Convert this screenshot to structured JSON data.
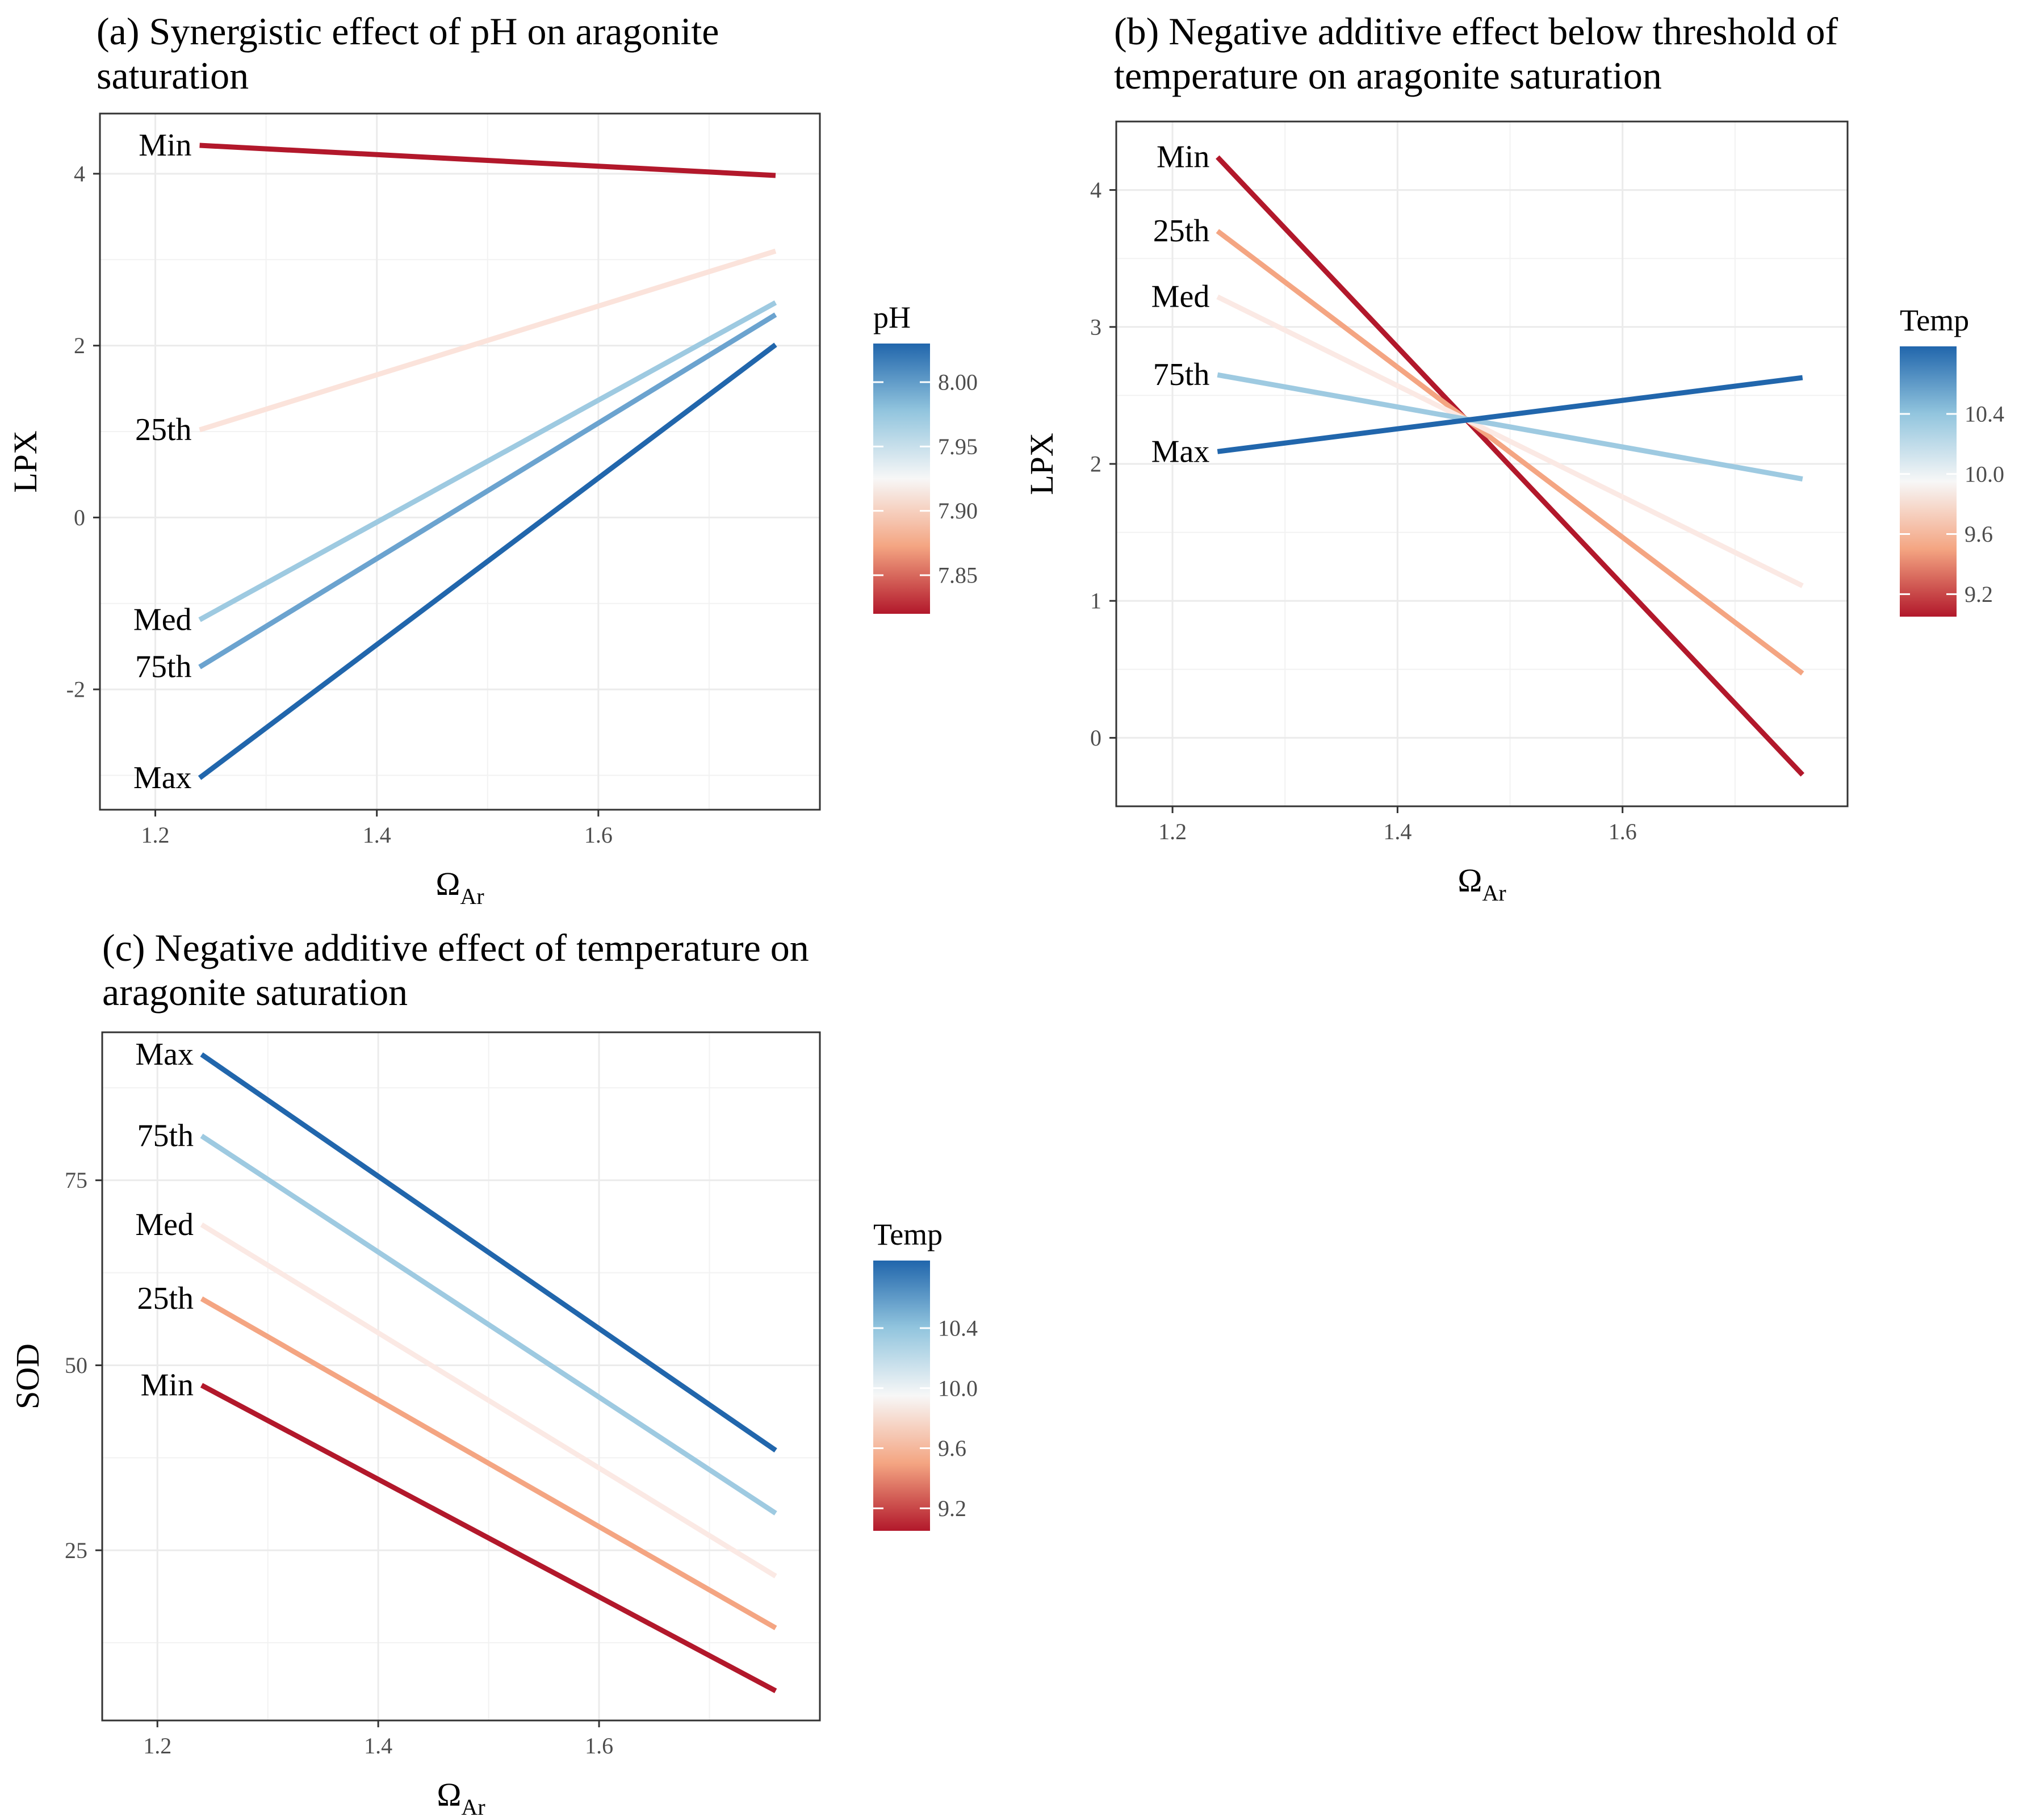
{
  "chart_data": [
    {
      "id": "a",
      "type": "line",
      "title_lines": [
        "(a) Synergistic effect of pH on aragonite",
        "saturation"
      ],
      "xlabel": "Ω",
      "xlabel_sub": "Ar",
      "ylabel": "LPX",
      "xlim": [
        1.15,
        1.8
      ],
      "ylim": [
        -3.4,
        4.7
      ],
      "xticks": [
        1.2,
        1.4,
        1.6
      ],
      "xtick_labels": [
        "1.2",
        "1.4",
        "1.6"
      ],
      "yticks": [
        -2,
        0,
        2,
        4
      ],
      "ytick_labels": [
        "-2",
        "0",
        "2",
        "4"
      ],
      "grid": true,
      "x": [
        1.24,
        1.76
      ],
      "series": [
        {
          "name": "Min",
          "values": [
            4.33,
            3.98
          ],
          "color": "#B2182B"
        },
        {
          "name": "25th",
          "values": [
            1.02,
            3.1
          ],
          "color": "#FBE3DB"
        },
        {
          "name": "Med",
          "values": [
            -1.19,
            2.5
          ],
          "color": "#9ECAE1"
        },
        {
          "name": "75th",
          "values": [
            -1.74,
            2.36
          ],
          "color": "#6BA3CF"
        },
        {
          "name": "Max",
          "values": [
            -3.03,
            2.01
          ],
          "color": "#2166AC"
        }
      ],
      "legend": {
        "title": "pH",
        "range": [
          7.82,
          8.03
        ],
        "ticks": [
          7.85,
          7.9,
          7.95,
          8.0
        ],
        "tick_labels": [
          "7.85",
          "7.90",
          "7.95",
          "8.00"
        ],
        "colors": [
          "#B2182B",
          "#F4A582",
          "#F7F7F7",
          "#92C5DE",
          "#2166AC"
        ],
        "placement": "right"
      }
    },
    {
      "id": "b",
      "type": "line",
      "title_lines": [
        "(b) Negative additive effect below threshold of",
        " temperature on aragonite saturation"
      ],
      "xlabel": "Ω",
      "xlabel_sub": "Ar",
      "ylabel": "LPX",
      "xlim": [
        1.15,
        1.8
      ],
      "ylim": [
        -0.5,
        4.5
      ],
      "xticks": [
        1.2,
        1.4,
        1.6
      ],
      "xtick_labels": [
        "1.2",
        "1.4",
        "1.6"
      ],
      "yticks": [
        0,
        1,
        2,
        3,
        4
      ],
      "ytick_labels": [
        "0",
        "1",
        "2",
        "3",
        "4"
      ],
      "grid": true,
      "x": [
        1.24,
        1.76
      ],
      "series": [
        {
          "name": "Min",
          "values": [
            4.24,
            -0.27
          ],
          "color": "#B2182B"
        },
        {
          "name": "25th",
          "values": [
            3.7,
            0.47
          ],
          "color": "#F4A582"
        },
        {
          "name": "Med",
          "values": [
            3.22,
            1.11
          ],
          "color": "#FBE9E4"
        },
        {
          "name": "75th",
          "values": [
            2.65,
            1.89
          ],
          "color": "#9ECAE1"
        },
        {
          "name": "Max",
          "values": [
            2.09,
            2.63
          ],
          "color": "#2166AC"
        }
      ],
      "legend": {
        "title": "Temp",
        "range": [
          9.05,
          10.85
        ],
        "ticks": [
          9.2,
          9.6,
          10.0,
          10.4
        ],
        "tick_labels": [
          "9.2",
          "9.6",
          "10.0",
          "10.4"
        ],
        "colors": [
          "#B2182B",
          "#F4A582",
          "#F7F7F7",
          "#92C5DE",
          "#2166AC"
        ],
        "placement": "right"
      }
    },
    {
      "id": "c",
      "type": "line",
      "title_lines": [
        "(c) Negative additive effect of temperature on",
        "aragonite saturation"
      ],
      "xlabel": "Ω",
      "xlabel_sub": "Ar",
      "ylabel": "SOD",
      "xlim": [
        1.15,
        1.8
      ],
      "ylim": [
        2,
        95
      ],
      "xticks": [
        1.2,
        1.4,
        1.6
      ],
      "xtick_labels": [
        "1.2",
        "1.4",
        "1.6"
      ],
      "yticks": [
        25,
        50,
        75
      ],
      "ytick_labels": [
        "25",
        "50",
        "75"
      ],
      "grid": true,
      "x": [
        1.24,
        1.76
      ],
      "series": [
        {
          "name": "Max",
          "values": [
            92.0,
            38.5
          ],
          "color": "#2166AC"
        },
        {
          "name": "75th",
          "values": [
            81.0,
            30.0
          ],
          "color": "#9ECAE1"
        },
        {
          "name": "Med",
          "values": [
            69.0,
            21.5
          ],
          "color": "#FBE9E4"
        },
        {
          "name": "25th",
          "values": [
            59.0,
            14.5
          ],
          "color": "#F4A582"
        },
        {
          "name": "Min",
          "values": [
            47.3,
            6.0
          ],
          "color": "#B2182B"
        }
      ],
      "legend": {
        "title": "Temp",
        "range": [
          9.05,
          10.85
        ],
        "ticks": [
          9.2,
          9.6,
          10.0,
          10.4
        ],
        "tick_labels": [
          "9.2",
          "9.6",
          "10.0",
          "10.4"
        ],
        "colors": [
          "#B2182B",
          "#F4A582",
          "#F7F7F7",
          "#92C5DE",
          "#2166AC"
        ],
        "placement": "right"
      }
    }
  ]
}
